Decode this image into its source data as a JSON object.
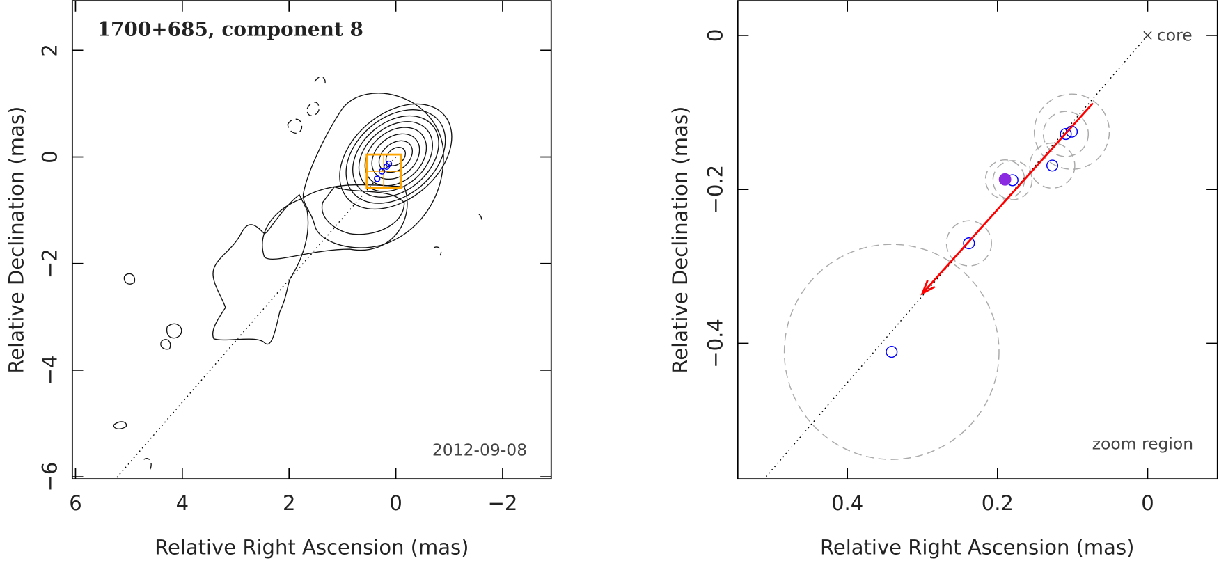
{
  "chart_data": [
    {
      "type": "contour",
      "title": "1700+685, component 8",
      "annotation": "2012-09-08",
      "x_label": "Relative Right Ascension (mas)",
      "y_label": "Relative Declination (mas)",
      "xlim": [
        6.06,
        -2.91
      ],
      "ylim": [
        -6.04,
        2.93
      ],
      "xticks": [
        6,
        4,
        2,
        0,
        {
          "value": -2,
          "label": "−2"
        }
      ],
      "yticks": [
        {
          "value": -6,
          "label": "−6"
        },
        {
          "value": -4,
          "label": "−4"
        },
        {
          "value": -2,
          "label": "−2"
        },
        0,
        2
      ],
      "x": [
        0.35,
        0.26,
        0.17,
        0.13
      ],
      "values": [
        -0.41,
        -0.27,
        -0.18,
        -0.13
      ],
      "color": "#0000ff",
      "zoom_box": {
        "xlim": [
          0.546,
          -0.093
        ],
        "ylim": [
          -0.576,
          0.045
        ],
        "color": "#ffa500"
      },
      "direction_line": {
        "x": [
          0,
          5.25
        ],
        "y": [
          0,
          -6.04
        ]
      }
    },
    {
      "type": "scatter",
      "annotation": "zoom region",
      "x_label": "Relative Right Ascension (mas)",
      "y_label": "Relative Declination (mas)",
      "xlim": [
        0.546,
        -0.093
      ],
      "ylim": [
        -0.576,
        0.045
      ],
      "xticks": [
        0.4,
        0.2,
        0
      ],
      "yticks": [
        {
          "value": -0.4,
          "label": "−0.4"
        },
        {
          "value": -0.2,
          "label": "−0.2"
        },
        0
      ],
      "x": [
        0.341,
        0.238,
        0.18,
        0.127,
        0.109,
        0.101
      ],
      "values": [
        -0.411,
        -0.27,
        -0.188,
        -0.169,
        -0.128,
        -0.125
      ],
      "sizes": [
        0.143,
        0.03,
        0.026,
        0.03,
        0.03,
        0.05
      ],
      "color": "#0000ff",
      "highlight": {
        "x": 0.19,
        "y": -0.187,
        "size": 0.026,
        "color": "#8a2be2"
      },
      "core": {
        "label": "core",
        "x": 0,
        "y": 0
      },
      "arrow": {
        "x": [
          0.073,
          0.3
        ],
        "y": [
          -0.088,
          -0.335
        ],
        "color": "#ff0000"
      },
      "direction_line": {
        "x": [
          0,
          0.51
        ],
        "y": [
          0,
          -0.575
        ]
      }
    }
  ]
}
